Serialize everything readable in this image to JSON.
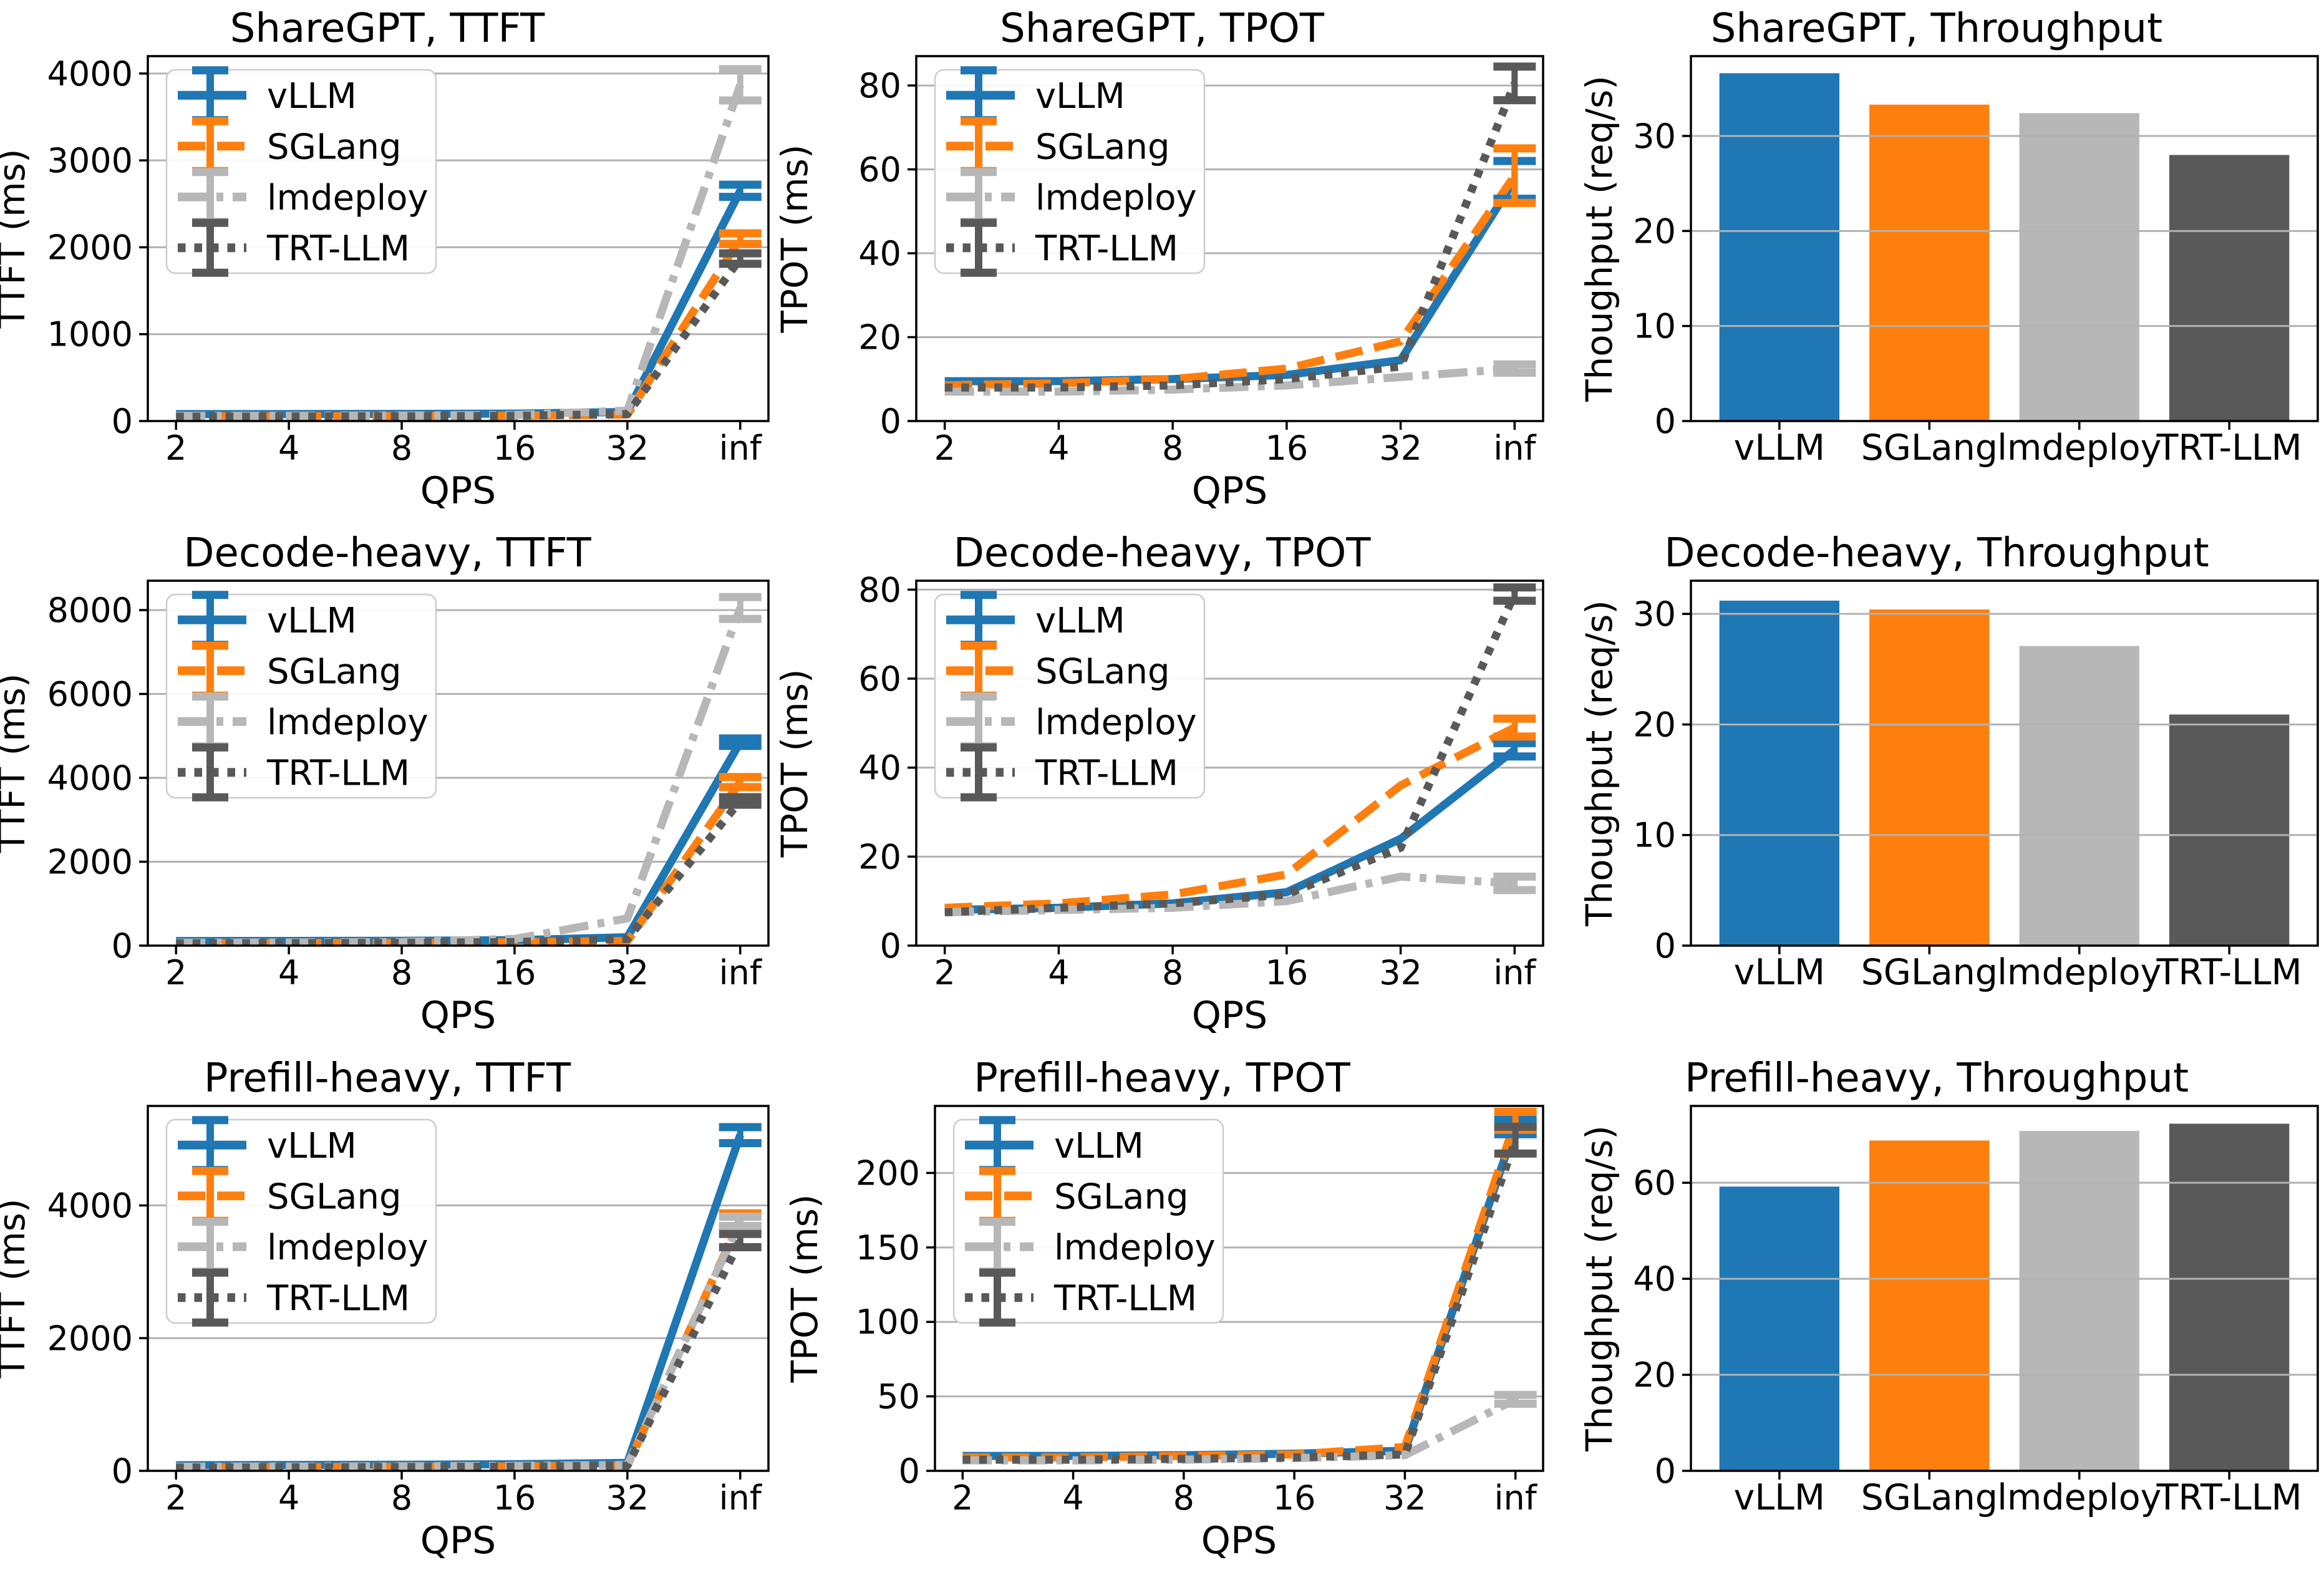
{
  "figure": {
    "rows": [
      "ShareGPT",
      "Decode-heavy",
      "Prefill-heavy"
    ],
    "metrics": [
      "TTFT",
      "TPOT",
      "Throughput"
    ],
    "x_axis_label": "QPS",
    "x_categories": [
      "2",
      "4",
      "8",
      "16",
      "32",
      "inf"
    ]
  },
  "colors": {
    "vLLM": "#1f77b4",
    "SGLang": "#ff7f0e",
    "lmdeploy": "#b7b7b7",
    "TRT-LLM": "#595959",
    "grid": "#b2b2b2",
    "spine": "#000000",
    "legend_border": "#cccccc",
    "background": "#ffffff"
  },
  "legend_labels": [
    "vLLM",
    "SGLang",
    "lmdeploy",
    "TRT-LLM"
  ],
  "chart_data": [
    {
      "type": "line",
      "title": "ShareGPT, TTFT",
      "xlabel": "QPS",
      "ylabel": "TTFT (ms)",
      "categories": [
        "2",
        "4",
        "8",
        "16",
        "32",
        "inf"
      ],
      "yticks": [
        0,
        1000,
        2000,
        3000,
        4000
      ],
      "ylim": [
        0,
        4200
      ],
      "grid": true,
      "legend": true,
      "legend_position": "upper left",
      "left_margin": 237,
      "ylabel_x": 39,
      "series": [
        {
          "name": "vLLM",
          "style": "solid",
          "values": [
            80,
            80,
            82,
            85,
            105,
            2650
          ],
          "err_last": 70
        },
        {
          "name": "SGLang",
          "style": "dashed",
          "values": [
            55,
            55,
            58,
            62,
            75,
            2100
          ],
          "err_last": 60
        },
        {
          "name": "lmdeploy",
          "style": "dashdot",
          "values": [
            60,
            60,
            63,
            70,
            120,
            3870
          ],
          "err_last": 180
        },
        {
          "name": "TRT-LLM",
          "style": "dotted",
          "values": [
            50,
            52,
            55,
            60,
            80,
            1870
          ],
          "err_last": 60
        }
      ]
    },
    {
      "type": "line",
      "title": "ShareGPT, TPOT",
      "xlabel": "QPS",
      "ylabel": "TPOT (ms)",
      "categories": [
        "2",
        "4",
        "8",
        "16",
        "32",
        "inf"
      ],
      "yticks": [
        0,
        20,
        40,
        60,
        80
      ],
      "ylim": [
        0,
        87
      ],
      "grid": true,
      "legend": true,
      "legend_position": "upper left",
      "left_margin": 227,
      "ylabel_x": 52,
      "series": [
        {
          "name": "vLLM",
          "style": "solid",
          "values": [
            9.5,
            9.5,
            10,
            11,
            14.5,
            57.5
          ],
          "err_last": 4.5
        },
        {
          "name": "SGLang",
          "style": "dashed",
          "values": [
            8.5,
            9,
            10,
            12.5,
            19,
            58.5
          ],
          "err_last": 6.5
        },
        {
          "name": "lmdeploy",
          "style": "dashdot",
          "values": [
            7,
            7,
            7.5,
            8.5,
            10.5,
            12.5
          ],
          "err_last": 1
        },
        {
          "name": "TRT-LLM",
          "style": "dotted",
          "values": [
            8,
            8,
            8.5,
            10,
            13,
            80.5
          ],
          "err_last": 4
        }
      ]
    },
    {
      "type": "bar",
      "title": "ShareGPT, Throughput",
      "xlabel": "",
      "ylabel": "Thoughput (req/s)",
      "categories": [
        "vLLM",
        "SGLang",
        "lmdeploy",
        "TRT-LLM"
      ],
      "values": [
        36.6,
        33.3,
        32.4,
        28.0
      ],
      "yticks": [
        0,
        10,
        20,
        30
      ],
      "ylim": [
        0,
        38.4
      ],
      "grid": true,
      "legend": false,
      "left_margin": 227,
      "ylabel_x": 100
    },
    {
      "type": "line",
      "title": "Decode-heavy, TTFT",
      "xlabel": "QPS",
      "ylabel": "TTFT (ms)",
      "categories": [
        "2",
        "4",
        "8",
        "16",
        "32",
        "inf"
      ],
      "yticks": [
        0,
        2000,
        4000,
        6000,
        8000
      ],
      "ylim": [
        0,
        8700
      ],
      "grid": true,
      "legend": true,
      "legend_position": "upper left",
      "left_margin": 237,
      "ylabel_x": 39,
      "series": [
        {
          "name": "vLLM",
          "style": "solid",
          "values": [
            110,
            112,
            115,
            130,
            200,
            4850
          ],
          "err_last": 90
        },
        {
          "name": "SGLang",
          "style": "dashed",
          "values": [
            60,
            62,
            68,
            80,
            110,
            3900
          ],
          "err_last": 120
        },
        {
          "name": "lmdeploy",
          "style": "dashdot",
          "values": [
            70,
            75,
            85,
            160,
            650,
            8050
          ],
          "err_last": 260
        },
        {
          "name": "TRT-LLM",
          "style": "dotted",
          "values": [
            55,
            58,
            65,
            85,
            160,
            3450
          ],
          "err_last": 90
        }
      ]
    },
    {
      "type": "line",
      "title": "Decode-heavy, TPOT",
      "xlabel": "QPS",
      "ylabel": "TPOT (ms)",
      "categories": [
        "2",
        "4",
        "8",
        "16",
        "32",
        "inf"
      ],
      "yticks": [
        0,
        20,
        40,
        60,
        80
      ],
      "ylim": [
        0,
        82
      ],
      "grid": true,
      "legend": true,
      "legend_position": "upper left",
      "left_margin": 227,
      "ylabel_x": 52,
      "series": [
        {
          "name": "vLLM",
          "style": "solid",
          "values": [
            8,
            8.5,
            9.5,
            12,
            24,
            44
          ],
          "err_last": 1.5
        },
        {
          "name": "SGLang",
          "style": "dashed",
          "values": [
            8.5,
            9.5,
            11.5,
            16,
            36,
            49
          ],
          "err_last": 2
        },
        {
          "name": "lmdeploy",
          "style": "dashdot",
          "values": [
            7.5,
            8,
            8.5,
            10,
            15.5,
            14
          ],
          "err_last": 1.5
        },
        {
          "name": "TRT-LLM",
          "style": "dotted",
          "values": [
            7.5,
            8.5,
            9.5,
            11.5,
            22,
            79
          ],
          "err_last": 1.5
        }
      ]
    },
    {
      "type": "bar",
      "title": "Decode-heavy, Throughput",
      "xlabel": "",
      "ylabel": "Thoughput (req/s)",
      "categories": [
        "vLLM",
        "SGLang",
        "lmdeploy",
        "TRT-LLM"
      ],
      "values": [
        31.2,
        30.4,
        27.1,
        20.9
      ],
      "yticks": [
        0,
        10,
        20,
        30
      ],
      "ylim": [
        0,
        33
      ],
      "grid": true,
      "legend": false,
      "left_margin": 227,
      "ylabel_x": 100
    },
    {
      "type": "line",
      "title": "Prefill-heavy, TTFT",
      "xlabel": "QPS",
      "ylabel": "TTFT (ms)",
      "categories": [
        "2",
        "4",
        "8",
        "16",
        "32",
        "inf"
      ],
      "yticks": [
        0,
        2000,
        4000
      ],
      "ylim": [
        0,
        5500
      ],
      "grid": true,
      "legend": true,
      "legend_position": "upper left",
      "left_margin": 237,
      "ylabel_x": 39,
      "series": [
        {
          "name": "vLLM",
          "style": "solid",
          "values": [
            85,
            88,
            92,
            100,
            120,
            5060
          ],
          "err_last": 120
        },
        {
          "name": "SGLang",
          "style": "dashed",
          "values": [
            55,
            57,
            60,
            66,
            80,
            3780
          ],
          "err_last": 100
        },
        {
          "name": "lmdeploy",
          "style": "dashdot",
          "values": [
            62,
            64,
            68,
            74,
            88,
            3760
          ],
          "err_last": 70
        },
        {
          "name": "TRT-LLM",
          "style": "dotted",
          "values": [
            50,
            53,
            57,
            62,
            78,
            3470
          ],
          "err_last": 100
        }
      ]
    },
    {
      "type": "line",
      "title": "Prefill-heavy, TPOT",
      "xlabel": "QPS",
      "ylabel": "TPOT (ms)",
      "categories": [
        "2",
        "4",
        "8",
        "16",
        "32",
        "inf"
      ],
      "yticks": [
        0,
        50,
        100,
        150,
        200
      ],
      "ylim": [
        0,
        245
      ],
      "grid": true,
      "legend": true,
      "legend_position": "upper left",
      "left_margin": 257,
      "ylabel_x": 68,
      "series": [
        {
          "name": "vLLM",
          "style": "solid",
          "values": [
            10,
            10,
            10.5,
            11.5,
            13.5,
            231
          ],
          "err_last": 5
        },
        {
          "name": "SGLang",
          "style": "dashed",
          "values": [
            9,
            9,
            10,
            11,
            16,
            235
          ],
          "err_last": 6
        },
        {
          "name": "lmdeploy",
          "style": "dashdot",
          "values": [
            7,
            7,
            7.5,
            8.5,
            10.5,
            48
          ],
          "err_last": 3
        },
        {
          "name": "TRT-LLM",
          "style": "dotted",
          "values": [
            7.5,
            7.5,
            8,
            9,
            11,
            222
          ],
          "err_last": 9
        }
      ]
    },
    {
      "type": "bar",
      "title": "Prefill-heavy, Throughput",
      "xlabel": "",
      "ylabel": "Thoughput (req/s)",
      "categories": [
        "vLLM",
        "SGLang",
        "lmdeploy",
        "TRT-LLM"
      ],
      "values": [
        59.2,
        68.8,
        70.8,
        72.3
      ],
      "yticks": [
        0,
        20,
        40,
        60
      ],
      "ylim": [
        0,
        76
      ],
      "grid": true,
      "legend": false,
      "left_margin": 227,
      "ylabel_x": 100
    }
  ]
}
